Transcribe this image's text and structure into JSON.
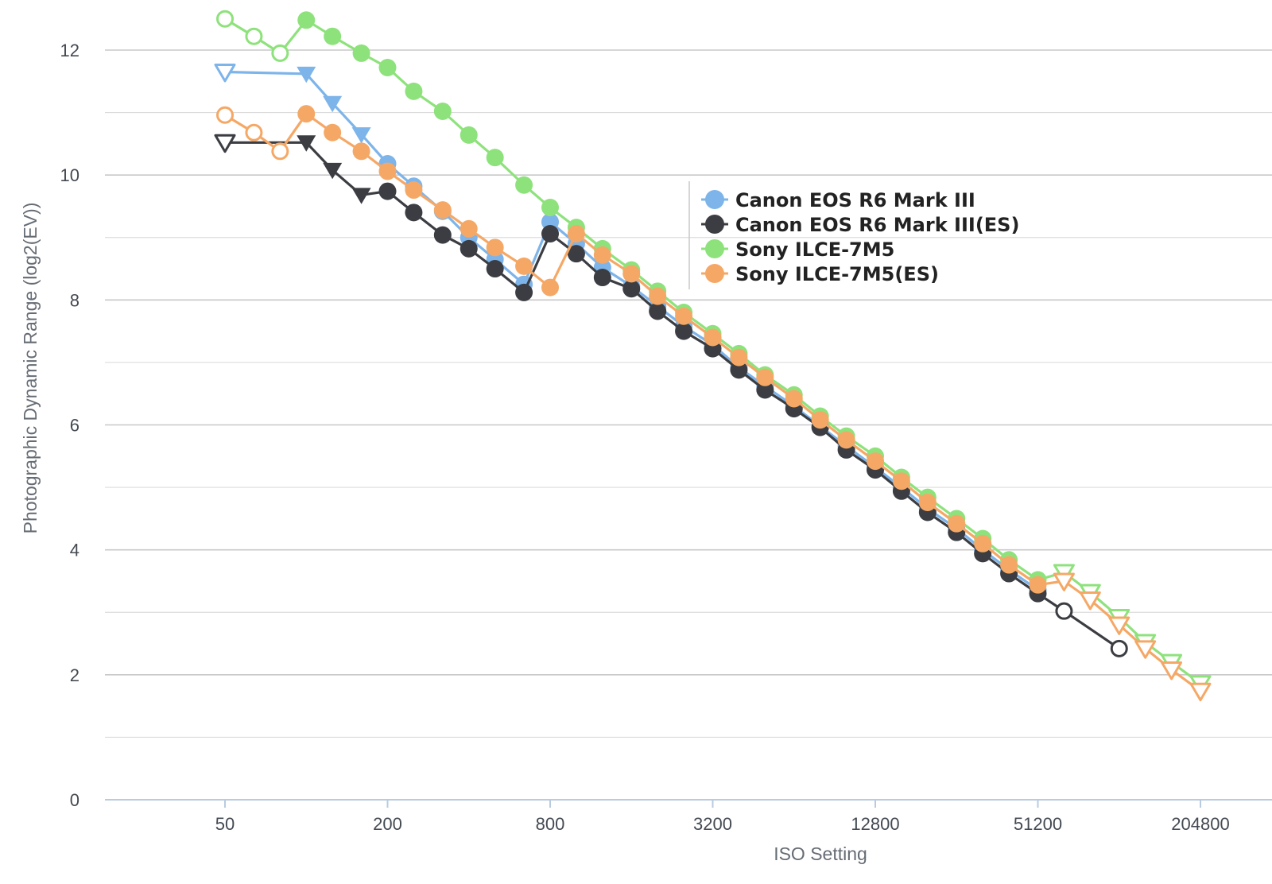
{
  "chart_data": {
    "type": "line",
    "title": "",
    "xlabel": "ISO Setting",
    "ylabel": "Photographic Dynamic Range (log2(EV))",
    "x_scale": "log2",
    "xlim": [
      25,
      409600
    ],
    "ylim": [
      0,
      12.5
    ],
    "x_ticks": [
      50,
      200,
      800,
      3200,
      12800,
      51200,
      204800
    ],
    "x_tick_labels": [
      "50",
      "200",
      "800",
      "3200",
      "12800",
      "51200",
      "204800"
    ],
    "y_ticks": [
      0,
      2,
      4,
      6,
      8,
      10,
      12
    ],
    "y_tick_labels": [
      "0",
      "2",
      "4",
      "6",
      "8",
      "10",
      "12"
    ],
    "grid": true,
    "legend_position": "center-right",
    "series": [
      {
        "name": "Canon EOS R6 Mark III",
        "color": "#7db4ea",
        "points": [
          {
            "x": 50,
            "y": 11.65,
            "marker": "triangle-open"
          },
          {
            "x": 100,
            "y": 11.62,
            "marker": "triangle"
          },
          {
            "x": 125,
            "y": 11.15,
            "marker": "triangle"
          },
          {
            "x": 160,
            "y": 10.65,
            "marker": "triangle"
          },
          {
            "x": 200,
            "y": 10.18,
            "marker": "circle"
          },
          {
            "x": 250,
            "y": 9.82,
            "marker": "circle"
          },
          {
            "x": 320,
            "y": 9.42,
            "marker": "circle"
          },
          {
            "x": 400,
            "y": 9.0,
            "marker": "circle"
          },
          {
            "x": 500,
            "y": 8.65,
            "marker": "circle"
          },
          {
            "x": 640,
            "y": 8.25,
            "marker": "circle"
          },
          {
            "x": 800,
            "y": 9.25,
            "marker": "circle"
          },
          {
            "x": 1000,
            "y": 8.9,
            "marker": "circle"
          },
          {
            "x": 1250,
            "y": 8.52,
            "marker": "circle"
          },
          {
            "x": 1600,
            "y": 8.22,
            "marker": "circle"
          },
          {
            "x": 2000,
            "y": 7.9,
            "marker": "circle"
          },
          {
            "x": 2500,
            "y": 7.58,
            "marker": "circle"
          },
          {
            "x": 3200,
            "y": 7.28,
            "marker": "circle"
          },
          {
            "x": 4000,
            "y": 6.92,
            "marker": "circle"
          },
          {
            "x": 5000,
            "y": 6.62,
            "marker": "circle"
          },
          {
            "x": 6400,
            "y": 6.3,
            "marker": "circle"
          },
          {
            "x": 8000,
            "y": 5.98,
            "marker": "circle"
          },
          {
            "x": 10000,
            "y": 5.66,
            "marker": "circle"
          },
          {
            "x": 12800,
            "y": 5.32,
            "marker": "circle"
          },
          {
            "x": 16000,
            "y": 5.0,
            "marker": "circle"
          },
          {
            "x": 20000,
            "y": 4.66,
            "marker": "circle"
          },
          {
            "x": 25600,
            "y": 4.34,
            "marker": "circle"
          },
          {
            "x": 32000,
            "y": 4.0,
            "marker": "circle"
          },
          {
            "x": 40000,
            "y": 3.68,
            "marker": "circle"
          },
          {
            "x": 51200,
            "y": 3.36,
            "marker": "circle"
          }
        ]
      },
      {
        "name": "Canon EOS R6 Mark III(ES)",
        "color": "#3b3d42",
        "points": [
          {
            "x": 50,
            "y": 10.52,
            "marker": "triangle-open"
          },
          {
            "x": 100,
            "y": 10.52,
            "marker": "triangle"
          },
          {
            "x": 125,
            "y": 10.08,
            "marker": "triangle"
          },
          {
            "x": 160,
            "y": 9.68,
            "marker": "triangle"
          },
          {
            "x": 200,
            "y": 9.74,
            "marker": "circle"
          },
          {
            "x": 250,
            "y": 9.4,
            "marker": "circle"
          },
          {
            "x": 320,
            "y": 9.04,
            "marker": "circle"
          },
          {
            "x": 400,
            "y": 8.82,
            "marker": "circle"
          },
          {
            "x": 500,
            "y": 8.5,
            "marker": "circle"
          },
          {
            "x": 640,
            "y": 8.12,
            "marker": "circle"
          },
          {
            "x": 800,
            "y": 9.06,
            "marker": "circle"
          },
          {
            "x": 1000,
            "y": 8.74,
            "marker": "circle"
          },
          {
            "x": 1250,
            "y": 8.36,
            "marker": "circle"
          },
          {
            "x": 1600,
            "y": 8.18,
            "marker": "circle"
          },
          {
            "x": 2000,
            "y": 7.82,
            "marker": "circle"
          },
          {
            "x": 2500,
            "y": 7.5,
            "marker": "circle"
          },
          {
            "x": 3200,
            "y": 7.22,
            "marker": "circle"
          },
          {
            "x": 4000,
            "y": 6.88,
            "marker": "circle"
          },
          {
            "x": 5000,
            "y": 6.56,
            "marker": "circle"
          },
          {
            "x": 6400,
            "y": 6.26,
            "marker": "circle"
          },
          {
            "x": 8000,
            "y": 5.96,
            "marker": "circle"
          },
          {
            "x": 10000,
            "y": 5.6,
            "marker": "circle"
          },
          {
            "x": 12800,
            "y": 5.28,
            "marker": "circle"
          },
          {
            "x": 16000,
            "y": 4.94,
            "marker": "circle"
          },
          {
            "x": 20000,
            "y": 4.6,
            "marker": "circle"
          },
          {
            "x": 25600,
            "y": 4.28,
            "marker": "circle"
          },
          {
            "x": 32000,
            "y": 3.94,
            "marker": "circle"
          },
          {
            "x": 40000,
            "y": 3.62,
            "marker": "circle"
          },
          {
            "x": 51200,
            "y": 3.3,
            "marker": "circle"
          },
          {
            "x": 64000,
            "y": 3.02,
            "marker": "circle-open"
          },
          {
            "x": 102400,
            "y": 2.42,
            "marker": "circle-open"
          }
        ]
      },
      {
        "name": "Sony ILCE-7M5",
        "color": "#8ee27c",
        "points": [
          {
            "x": 50,
            "y": 12.5,
            "marker": "circle-open"
          },
          {
            "x": 64,
            "y": 12.22,
            "marker": "circle-open"
          },
          {
            "x": 80,
            "y": 11.95,
            "marker": "circle-open"
          },
          {
            "x": 100,
            "y": 12.48,
            "marker": "circle"
          },
          {
            "x": 125,
            "y": 12.22,
            "marker": "circle"
          },
          {
            "x": 160,
            "y": 11.95,
            "marker": "circle"
          },
          {
            "x": 200,
            "y": 11.72,
            "marker": "circle"
          },
          {
            "x": 250,
            "y": 11.34,
            "marker": "circle"
          },
          {
            "x": 320,
            "y": 11.02,
            "marker": "circle"
          },
          {
            "x": 400,
            "y": 10.64,
            "marker": "circle"
          },
          {
            "x": 500,
            "y": 10.28,
            "marker": "circle"
          },
          {
            "x": 640,
            "y": 9.84,
            "marker": "circle"
          },
          {
            "x": 800,
            "y": 9.48,
            "marker": "circle"
          },
          {
            "x": 1000,
            "y": 9.16,
            "marker": "circle"
          },
          {
            "x": 1250,
            "y": 8.82,
            "marker": "circle"
          },
          {
            "x": 1600,
            "y": 8.48,
            "marker": "circle"
          },
          {
            "x": 2000,
            "y": 8.14,
            "marker": "circle"
          },
          {
            "x": 2500,
            "y": 7.8,
            "marker": "circle"
          },
          {
            "x": 3200,
            "y": 7.46,
            "marker": "circle"
          },
          {
            "x": 4000,
            "y": 7.14,
            "marker": "circle"
          },
          {
            "x": 5000,
            "y": 6.8,
            "marker": "circle"
          },
          {
            "x": 6400,
            "y": 6.48,
            "marker": "circle"
          },
          {
            "x": 8000,
            "y": 6.14,
            "marker": "circle"
          },
          {
            "x": 10000,
            "y": 5.82,
            "marker": "circle"
          },
          {
            "x": 12800,
            "y": 5.5,
            "marker": "circle"
          },
          {
            "x": 16000,
            "y": 5.16,
            "marker": "circle"
          },
          {
            "x": 20000,
            "y": 4.84,
            "marker": "circle"
          },
          {
            "x": 25600,
            "y": 4.5,
            "marker": "circle"
          },
          {
            "x": 32000,
            "y": 4.18,
            "marker": "circle"
          },
          {
            "x": 40000,
            "y": 3.84,
            "marker": "circle"
          },
          {
            "x": 51200,
            "y": 3.52,
            "marker": "circle"
          },
          {
            "x": 64000,
            "y": 3.64,
            "marker": "triangle-open"
          },
          {
            "x": 80000,
            "y": 3.32,
            "marker": "triangle-open"
          },
          {
            "x": 102400,
            "y": 2.92,
            "marker": "triangle-open"
          },
          {
            "x": 128000,
            "y": 2.52,
            "marker": "triangle-open"
          },
          {
            "x": 160000,
            "y": 2.2,
            "marker": "triangle-open"
          },
          {
            "x": 204800,
            "y": 1.86,
            "marker": "triangle-open"
          }
        ]
      },
      {
        "name": "Sony ILCE-7M5(ES)",
        "color": "#f5a866",
        "points": [
          {
            "x": 50,
            "y": 10.96,
            "marker": "circle-open"
          },
          {
            "x": 64,
            "y": 10.68,
            "marker": "circle-open"
          },
          {
            "x": 80,
            "y": 10.38,
            "marker": "circle-open"
          },
          {
            "x": 100,
            "y": 10.98,
            "marker": "circle"
          },
          {
            "x": 125,
            "y": 10.68,
            "marker": "circle"
          },
          {
            "x": 160,
            "y": 10.38,
            "marker": "circle"
          },
          {
            "x": 200,
            "y": 10.06,
            "marker": "circle"
          },
          {
            "x": 250,
            "y": 9.76,
            "marker": "circle"
          },
          {
            "x": 320,
            "y": 9.44,
            "marker": "circle"
          },
          {
            "x": 400,
            "y": 9.14,
            "marker": "circle"
          },
          {
            "x": 500,
            "y": 8.84,
            "marker": "circle"
          },
          {
            "x": 640,
            "y": 8.54,
            "marker": "circle"
          },
          {
            "x": 800,
            "y": 8.2,
            "marker": "circle"
          },
          {
            "x": 1000,
            "y": 9.06,
            "marker": "circle"
          },
          {
            "x": 1250,
            "y": 8.72,
            "marker": "circle"
          },
          {
            "x": 1600,
            "y": 8.42,
            "marker": "circle"
          },
          {
            "x": 2000,
            "y": 8.06,
            "marker": "circle"
          },
          {
            "x": 2500,
            "y": 7.74,
            "marker": "circle"
          },
          {
            "x": 3200,
            "y": 7.4,
            "marker": "circle"
          },
          {
            "x": 4000,
            "y": 7.08,
            "marker": "circle"
          },
          {
            "x": 5000,
            "y": 6.76,
            "marker": "circle"
          },
          {
            "x": 6400,
            "y": 6.42,
            "marker": "circle"
          },
          {
            "x": 8000,
            "y": 6.08,
            "marker": "circle"
          },
          {
            "x": 10000,
            "y": 5.76,
            "marker": "circle"
          },
          {
            "x": 12800,
            "y": 5.42,
            "marker": "circle"
          },
          {
            "x": 16000,
            "y": 5.1,
            "marker": "circle"
          },
          {
            "x": 20000,
            "y": 4.76,
            "marker": "circle"
          },
          {
            "x": 25600,
            "y": 4.42,
            "marker": "circle"
          },
          {
            "x": 32000,
            "y": 4.1,
            "marker": "circle"
          },
          {
            "x": 40000,
            "y": 3.76,
            "marker": "circle"
          },
          {
            "x": 51200,
            "y": 3.44,
            "marker": "circle"
          },
          {
            "x": 64000,
            "y": 3.5,
            "marker": "triangle-open"
          },
          {
            "x": 80000,
            "y": 3.2,
            "marker": "triangle-open"
          },
          {
            "x": 102400,
            "y": 2.8,
            "marker": "triangle-open"
          },
          {
            "x": 128000,
            "y": 2.42,
            "marker": "triangle-open"
          },
          {
            "x": 160000,
            "y": 2.08,
            "marker": "triangle-open"
          },
          {
            "x": 204800,
            "y": 1.74,
            "marker": "triangle-open"
          }
        ]
      }
    ]
  }
}
